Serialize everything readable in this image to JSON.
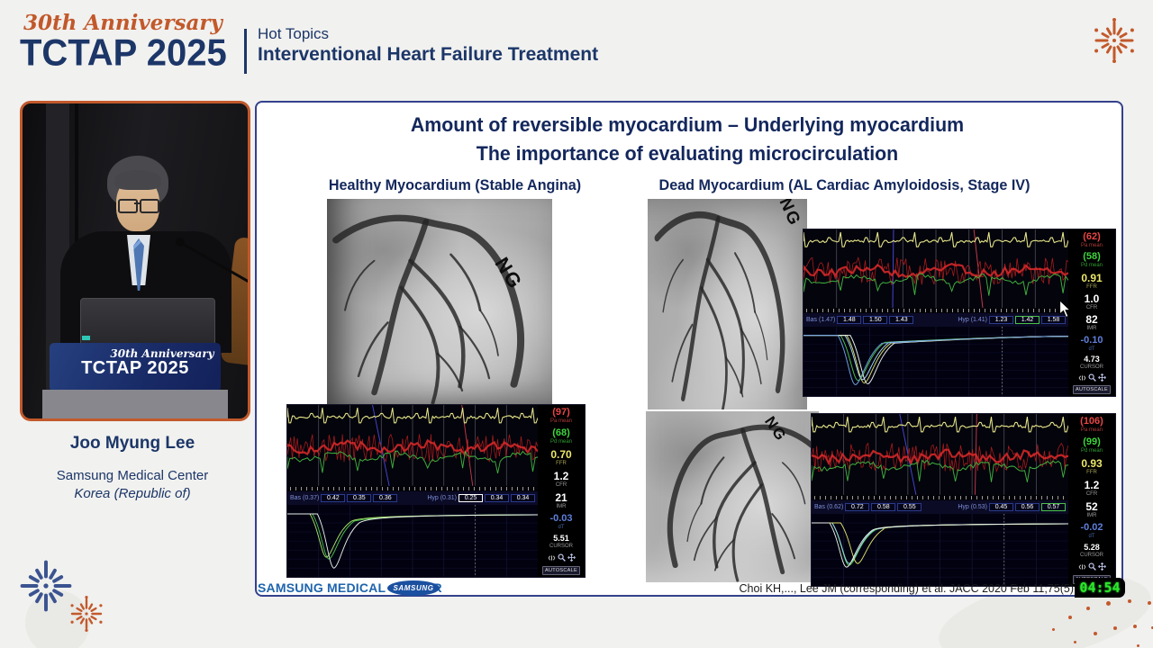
{
  "header": {
    "anniversary": "30th Anniversary",
    "brand": "TCTAP 2025",
    "session_type": "Hot Topics",
    "session_title": "Interventional Heart Failure Treatment"
  },
  "speaker": {
    "name": "Joo Myung Lee",
    "affiliation": "Samsung Medical Center",
    "country": "Korea (Republic of)",
    "podium_anniversary": "30th Anniversary",
    "podium_brand": "TCTAP 2025"
  },
  "slide": {
    "title_line1": "Amount of reversible myocardium – Underlying myocardium",
    "title_line2": "The importance of evaluating microcirculation",
    "left_column_header": "Healthy Myocardium (Stable Angina)",
    "right_column_header": "Dead Myocardium (AL Cardiac Amyloidosis, Stage IV)",
    "ng_label": "NG",
    "citation": "Choi KH,..., Lee JM (corresponding) et al. JACC 2020 Feb 11;75(5)",
    "footer_institution": "SAMSUNG MEDICAL CENTER",
    "footer_samsung": "SAMSUNG",
    "timer": "04:54"
  },
  "colors": {
    "accent_orange": "#c2592b",
    "navy": "#1c3668",
    "samsung_blue": "#1e64ad",
    "timer_green": "#2ce62c"
  },
  "panels": [
    {
      "bas_label": "Bas (0.37)",
      "bas_values": [
        "0.42",
        "0.35",
        "0.36"
      ],
      "hyp_label": "Hyp (0.31)",
      "hyp_values": [
        "0.25",
        "0.34",
        "0.34"
      ],
      "hyp_highlight": 0,
      "highlight_color": "#ffffff",
      "metrics": [
        {
          "value": "(97)",
          "label": "Pa mean",
          "color": "red"
        },
        {
          "value": "(68)",
          "label": "Pd mean",
          "color": "green"
        },
        {
          "value": "0.70",
          "label": "FFR",
          "color": "yellow"
        },
        {
          "value": "1.2",
          "label": "CFR",
          "color": "white"
        },
        {
          "value": "21",
          "label": "IMR",
          "color": "white"
        },
        {
          "value": "-0.03",
          "label": "dT",
          "color": "blue"
        },
        {
          "value": "5.51",
          "label": "CURSOR",
          "color": "cursor"
        }
      ],
      "autoscale_label": "AUTOSCALE"
    },
    {
      "bas_label": "Bas (1.47)",
      "bas_values": [
        "1.48",
        "1.50",
        "1.43"
      ],
      "hyp_label": "Hyp (1.41)",
      "hyp_values": [
        "1.23",
        "1.42",
        "1.58"
      ],
      "hyp_highlight": 1,
      "highlight_color": "#49c249",
      "metrics": [
        {
          "value": "(62)",
          "label": "Pa mean",
          "color": "red"
        },
        {
          "value": "(58)",
          "label": "Pd mean",
          "color": "green"
        },
        {
          "value": "0.91",
          "label": "FFR",
          "color": "yellow"
        },
        {
          "value": "1.0",
          "label": "CFR",
          "color": "white"
        },
        {
          "value": "82",
          "label": "IMR",
          "color": "white"
        },
        {
          "value": "-0.10",
          "label": "dT",
          "color": "blue"
        },
        {
          "value": "4.73",
          "label": "CURSOR",
          "color": "cursor"
        }
      ],
      "autoscale_label": "AUTOSCALE"
    },
    {
      "bas_label": "Bas (0.62)",
      "bas_values": [
        "0.72",
        "0.58",
        "0.55"
      ],
      "hyp_label": "Hyp (0.53)",
      "hyp_values": [
        "0.45",
        "0.56",
        "0.57"
      ],
      "hyp_highlight": 2,
      "highlight_color": "#49c249",
      "metrics": [
        {
          "value": "(106)",
          "label": "Pa mean",
          "color": "red"
        },
        {
          "value": "(99)",
          "label": "Pd mean",
          "color": "green"
        },
        {
          "value": "0.93",
          "label": "FFR",
          "color": "yellow"
        },
        {
          "value": "1.2",
          "label": "CFR",
          "color": "white"
        },
        {
          "value": "52",
          "label": "IMR",
          "color": "white"
        },
        {
          "value": "-0.02",
          "label": "dT",
          "color": "blue"
        },
        {
          "value": "5.28",
          "label": "CURSOR",
          "color": "cursor"
        }
      ],
      "autoscale_label": "AUTOSCALE"
    }
  ]
}
